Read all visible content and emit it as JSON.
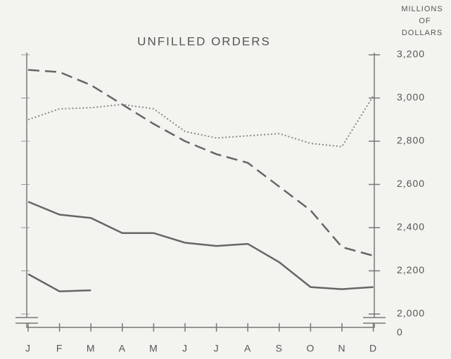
{
  "chart_data": {
    "type": "line",
    "title": "UNFILLED ORDERS",
    "y_label_lines": [
      "MILLIONS",
      "OF",
      "DOLLARS"
    ],
    "categories": [
      "J",
      "F",
      "M",
      "A",
      "M",
      "J",
      "J",
      "A",
      "S",
      "O",
      "N",
      "D"
    ],
    "series": [
      {
        "color": "#666",
        "style": "dashed",
        "values": [
          3130,
          3120,
          3060,
          2970,
          2880,
          2800,
          2740,
          2700,
          2590,
          2480,
          2310,
          2270
        ]
      },
      {
        "color": "#888",
        "style": "dotted",
        "values": [
          2900,
          2950,
          2955,
          2970,
          2950,
          2845,
          2815,
          2825,
          2835,
          2790,
          2775,
          3010
        ]
      },
      {
        "color": "#666",
        "style": "solid",
        "values": [
          2520,
          2460,
          2445,
          2375,
          2375,
          2330,
          2315,
          2325,
          2240,
          2125,
          2115,
          2125
        ]
      },
      {
        "color": "#666",
        "style": "solid",
        "values": [
          2185,
          2105,
          2110,
          null,
          null,
          null,
          null,
          null,
          null,
          null,
          null,
          null
        ]
      }
    ],
    "axis_side": "right",
    "ylim": [
      2000,
      3200
    ],
    "yticks": [
      {
        "value": 2000,
        "label": "2,000"
      },
      {
        "value": 2200,
        "label": "2,200"
      },
      {
        "value": 2400,
        "label": "2,400"
      },
      {
        "value": 2600,
        "label": "2,600"
      },
      {
        "value": 2800,
        "label": "2,800"
      },
      {
        "value": 3000,
        "label": "3,000"
      },
      {
        "value": 3200,
        "label": "3,200"
      }
    ],
    "axis_break_label": 0,
    "grid": false
  }
}
